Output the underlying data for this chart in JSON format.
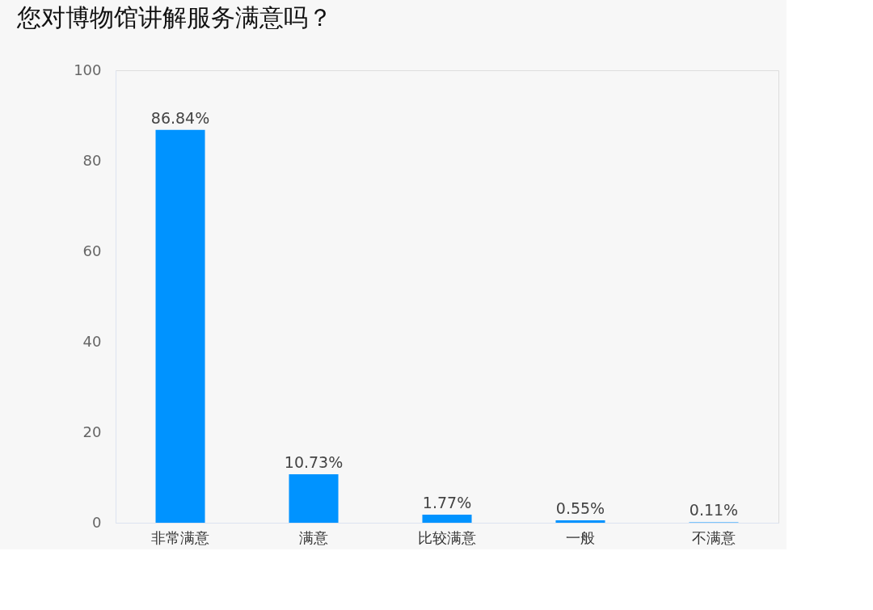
{
  "chart_data": {
    "type": "bar",
    "title": "您对博物馆讲解服务满意吗？",
    "categories": [
      "非常满意",
      "满意",
      "比较满意",
      "一般",
      "不满意"
    ],
    "values": [
      86.84,
      10.73,
      1.77,
      0.55,
      0.11
    ],
    "value_labels": [
      "86.84%",
      "10.73%",
      "1.77%",
      "0.55%",
      "0.11%"
    ],
    "color": "#0093ff",
    "ylim": [
      0,
      100
    ],
    "yticks": [
      0,
      20,
      40,
      60,
      80,
      100
    ],
    "grid": false
  }
}
